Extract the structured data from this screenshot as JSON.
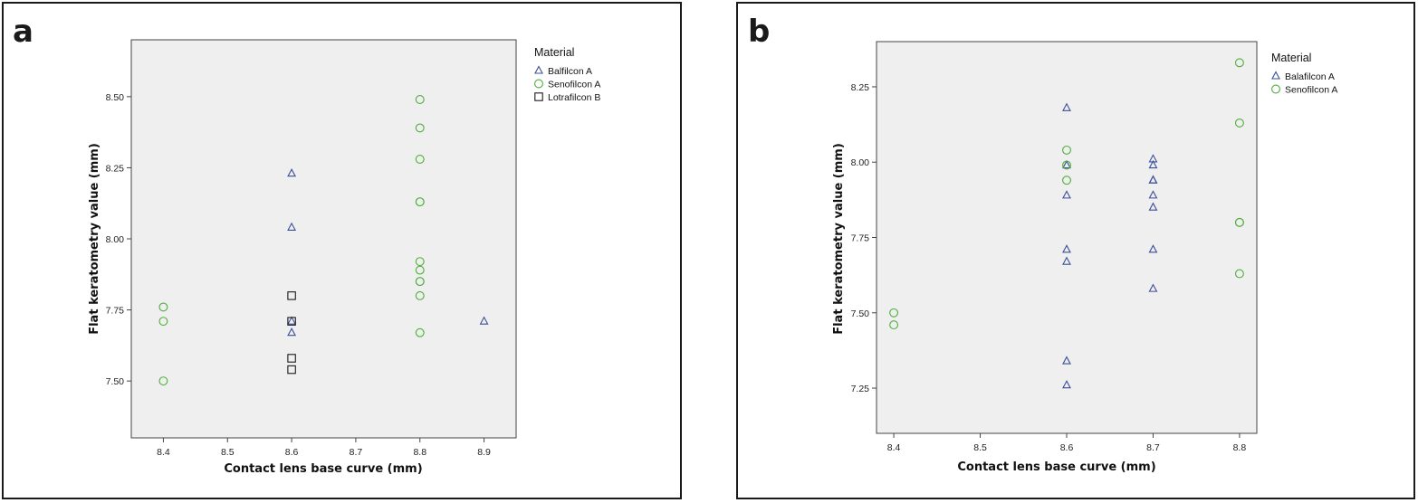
{
  "chart_data": [
    {
      "type": "scatter",
      "panel_label": "a",
      "xlabel": "Contact lens base curve (mm)",
      "ylabel": "Flat keratometry value (mm)",
      "xlim": [
        8.35,
        8.95
      ],
      "ylim": [
        7.3,
        8.7
      ],
      "xticks": [
        "8.4",
        "8.5",
        "8.6",
        "8.7",
        "8.8",
        "8.9"
      ],
      "yticks": [
        "7.50",
        "7.75",
        "8.00",
        "8.25",
        "8.50"
      ],
      "grid": false,
      "legend": {
        "title": "Material",
        "position": "right"
      },
      "series": [
        {
          "name": "Balfilcon A",
          "marker": "triangle",
          "color": "#3a4f9a",
          "points": [
            [
              8.6,
              8.23
            ],
            [
              8.6,
              8.04
            ],
            [
              8.6,
              7.71
            ],
            [
              8.6,
              7.67
            ],
            [
              8.9,
              7.71
            ]
          ]
        },
        {
          "name": "Senofilcon A",
          "marker": "circle",
          "color": "#4caf3a",
          "points": [
            [
              8.4,
              7.76
            ],
            [
              8.4,
              7.71
            ],
            [
              8.4,
              7.5
            ],
            [
              8.8,
              8.49
            ],
            [
              8.8,
              8.39
            ],
            [
              8.8,
              8.28
            ],
            [
              8.8,
              8.13
            ],
            [
              8.8,
              8.13
            ],
            [
              8.8,
              7.92
            ],
            [
              8.8,
              7.89
            ],
            [
              8.8,
              7.85
            ],
            [
              8.8,
              7.85
            ],
            [
              8.8,
              7.8
            ],
            [
              8.8,
              7.67
            ]
          ]
        },
        {
          "name": "Lotrafilcon B",
          "marker": "square",
          "color": "#1a1a1a",
          "points": [
            [
              8.6,
              7.8
            ],
            [
              8.6,
              7.71
            ],
            [
              8.6,
              7.58
            ],
            [
              8.6,
              7.54
            ]
          ]
        }
      ]
    },
    {
      "type": "scatter",
      "panel_label": "b",
      "xlabel": "Contact lens base curve (mm)",
      "ylabel": "Flat keratometry value (mm)",
      "xlim": [
        8.38,
        8.82
      ],
      "ylim": [
        7.1,
        8.4
      ],
      "xticks": [
        "8.4",
        "8.5",
        "8.6",
        "8.7",
        "8.8"
      ],
      "yticks": [
        "7.25",
        "7.50",
        "7.75",
        "8.00",
        "8.25"
      ],
      "grid": false,
      "legend": {
        "title": "Material",
        "position": "right"
      },
      "series": [
        {
          "name": "Balafilcon A",
          "marker": "triangle",
          "color": "#3a4f9a",
          "points": [
            [
              8.6,
              8.18
            ],
            [
              8.6,
              7.99
            ],
            [
              8.6,
              7.89
            ],
            [
              8.6,
              7.71
            ],
            [
              8.6,
              7.67
            ],
            [
              8.6,
              7.34
            ],
            [
              8.6,
              7.26
            ],
            [
              8.7,
              8.01
            ],
            [
              8.7,
              7.99
            ],
            [
              8.7,
              7.94
            ],
            [
              8.7,
              7.94
            ],
            [
              8.7,
              7.89
            ],
            [
              8.7,
              7.85
            ],
            [
              8.7,
              7.71
            ],
            [
              8.7,
              7.58
            ]
          ]
        },
        {
          "name": "Senofilcon A",
          "marker": "circle",
          "color": "#4caf3a",
          "points": [
            [
              8.4,
              7.5
            ],
            [
              8.4,
              7.46
            ],
            [
              8.6,
              8.04
            ],
            [
              8.6,
              7.99
            ],
            [
              8.6,
              7.94
            ],
            [
              8.8,
              8.33
            ],
            [
              8.8,
              8.13
            ],
            [
              8.8,
              7.8
            ],
            [
              8.8,
              7.8
            ],
            [
              8.8,
              7.63
            ]
          ]
        }
      ]
    }
  ]
}
